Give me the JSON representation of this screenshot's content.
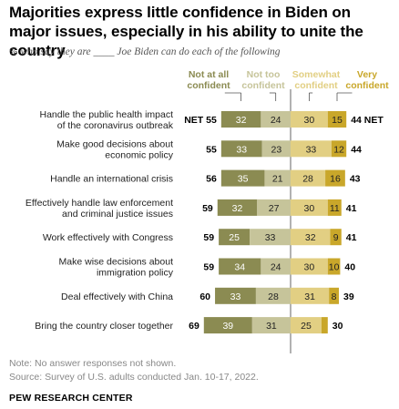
{
  "title": "Majorities express little confidence in Biden on major issues, especially in his ability to unite the country",
  "subtitle": "% who say they are ____ Joe Biden can do each of the following",
  "note": "Note: No answer responses not shown.",
  "source": "Source: Survey of U.S. adults conducted Jan. 10-17, 2022.",
  "org": "PEW RESEARCH CENTER",
  "colors": {
    "not_at_all": "#8b8b52",
    "not_too": "#c6c49a",
    "somewhat": "#e2cf83",
    "very": "#c9a72a"
  },
  "chart_data": {
    "type": "bar",
    "orientation": "horizontal-diverging",
    "legend_position": "top",
    "series": [
      {
        "name": "Not at all confident",
        "legend_lines": [
          "Not at all",
          "confident"
        ],
        "color": "#8b8b52",
        "values": [
          32,
          33,
          35,
          32,
          25,
          34,
          33,
          39
        ]
      },
      {
        "name": "Not too confident",
        "legend_lines": [
          "Not too",
          "confident"
        ],
        "color": "#c6c49a",
        "values": [
          24,
          23,
          21,
          27,
          33,
          24,
          28,
          31
        ]
      },
      {
        "name": "Somewhat confident",
        "legend_lines": [
          "Somewhat",
          "confident"
        ],
        "color": "#e2cf83",
        "values": [
          30,
          33,
          28,
          30,
          32,
          30,
          31,
          25
        ]
      },
      {
        "name": "Very confident",
        "legend_lines": [
          "Very",
          "confident"
        ],
        "color": "#c9a72a",
        "values": [
          15,
          12,
          16,
          11,
          9,
          10,
          8,
          5
        ]
      }
    ],
    "categories": [
      [
        "Handle the public health impact",
        "of the coronavirus outbreak"
      ],
      [
        "Make good decisions about",
        "economic policy"
      ],
      [
        "Handle an international crisis"
      ],
      [
        "Effectively handle law enforcement",
        "and criminal justice issues"
      ],
      [
        "Work effectively with Congress"
      ],
      [
        "Make wise decisions about",
        "immigration policy"
      ],
      [
        "Deal effectively with China"
      ],
      [
        "Bring the country closer together"
      ]
    ],
    "net_not_confident": [
      "NET 55",
      "55",
      "56",
      "59",
      "59",
      "59",
      "60",
      "69"
    ],
    "net_confident": [
      "44 NET",
      "44",
      "43",
      "41",
      "41",
      "40",
      "39",
      "30"
    ],
    "value_labels": [
      [
        "32",
        "24",
        "30",
        "15"
      ],
      [
        "33",
        "23",
        "33",
        "12"
      ],
      [
        "35",
        "21",
        "28",
        "16"
      ],
      [
        "32",
        "27",
        "30",
        "11"
      ],
      [
        "25",
        "33",
        "32",
        "9"
      ],
      [
        "34",
        "24",
        "30",
        "10"
      ],
      [
        "33",
        "28",
        "31",
        "8"
      ],
      [
        "39",
        "31",
        "25",
        ""
      ]
    ]
  }
}
